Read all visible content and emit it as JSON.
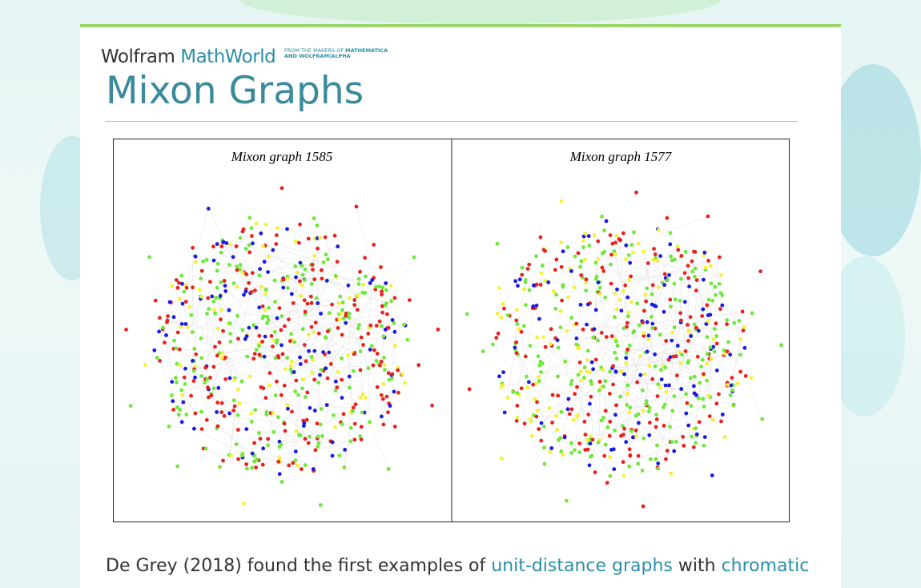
{
  "header": {
    "brand_first": "Wolfram",
    "brand_second": "MathWorld",
    "tagline_line1": "FROM THE MAKERS OF",
    "tagline_line1_bold": "MATHEMATICA",
    "tagline_line2": "AND WOLFRAM|ALPHA"
  },
  "page": {
    "title": "Mixon Graphs"
  },
  "figure": {
    "panels": [
      {
        "caption": "Mixon graph 1585"
      },
      {
        "caption": "Mixon graph 1577"
      }
    ]
  },
  "paragraph": {
    "parts": [
      {
        "text": "De Grey (2018) found the first examples of "
      },
      {
        "text": "unit-distance graphs",
        "link": true
      },
      {
        "text": " with "
      },
      {
        "text": "chromatic",
        "link": true
      }
    ]
  }
}
